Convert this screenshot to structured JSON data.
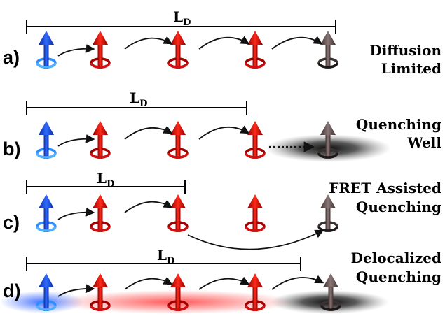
{
  "length_symbol": "L",
  "length_subscript": "D",
  "colors": {
    "donor": "#1447e0",
    "donor_ring": "#2a8fff",
    "exciton": "#e00000",
    "exciton_ring": "#b00000",
    "quencher": "#6b5555",
    "quencher_ring": "#3a3030",
    "arrow": "#111111"
  },
  "panels": [
    {
      "label": "a)",
      "description_lines": [
        "Diffusion",
        "Limited"
      ]
    },
    {
      "label": "b)",
      "description_lines": [
        "Quenching",
        "Well"
      ]
    },
    {
      "label": "c)",
      "description_lines": [
        "FRET Assisted",
        "Quenching"
      ]
    },
    {
      "label": "d)",
      "description_lines": [
        "Delocalized",
        "Quenching"
      ]
    }
  ]
}
